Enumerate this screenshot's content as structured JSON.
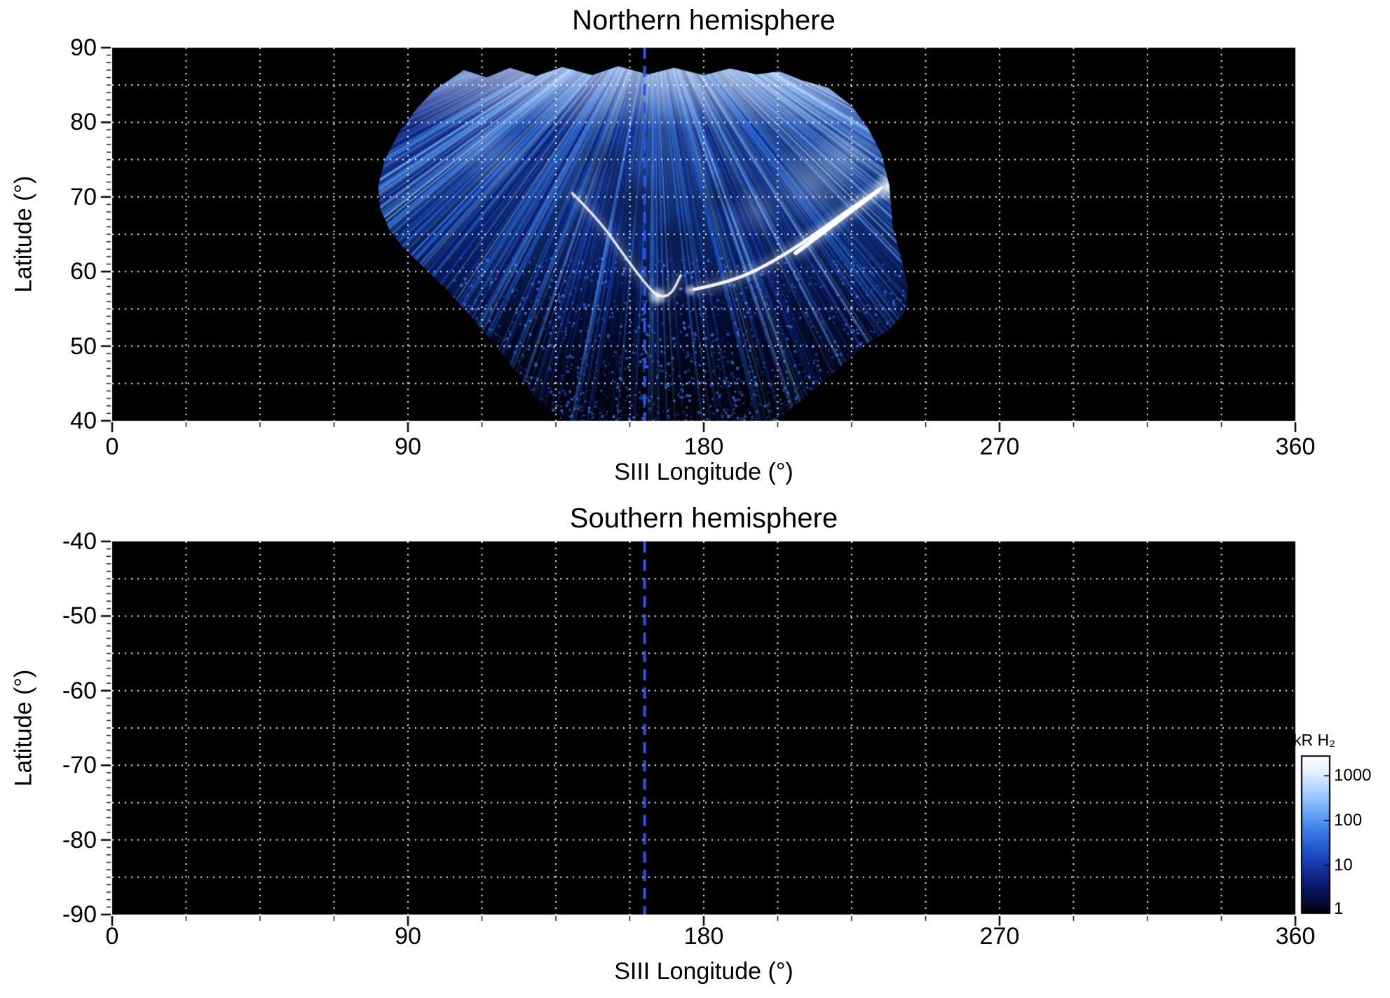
{
  "chart_data": [
    {
      "type": "heatmap",
      "title": "Northern hemisphere",
      "xlabel": "SIII Longitude (°)",
      "ylabel": "Latitude (°)",
      "xlim": [
        0,
        360
      ],
      "ylim": [
        40,
        90
      ],
      "xticks": [
        0,
        90,
        180,
        270,
        360
      ],
      "yticks": [
        40,
        50,
        60,
        70,
        80,
        90
      ],
      "grid_on": true,
      "grid_x_spacing": 22.5,
      "grid_y_spacing": 5,
      "grid_color": "#ffffff",
      "background": "#000000",
      "dashed_line_lon": 162,
      "dashed_line_color": "#2a55e8",
      "aurora": {
        "present": true,
        "description": "Fan-shaped observed swath of H2 auroral emission, radial streak texture, bright main emission arc near 55-72 deg latitude",
        "coverage_lon": [
          80,
          243
        ],
        "coverage_lat": [
          40,
          87.5
        ],
        "swath_polygon": [
          [
            102,
            85.5
          ],
          [
            107,
            87
          ],
          [
            114,
            86
          ],
          [
            121,
            87.3
          ],
          [
            129,
            86.2
          ],
          [
            137,
            87.4
          ],
          [
            146,
            86.3
          ],
          [
            154,
            87.5
          ],
          [
            163,
            86.4
          ],
          [
            171,
            87.3
          ],
          [
            180,
            86.3
          ],
          [
            188,
            87.2
          ],
          [
            196,
            86.4
          ],
          [
            203,
            86.8
          ],
          [
            210,
            85.6
          ],
          [
            218,
            84.6
          ],
          [
            225,
            82.2
          ],
          [
            230,
            79.2
          ],
          [
            234,
            75.8
          ],
          [
            236.5,
            71.5
          ],
          [
            237.5,
            66
          ],
          [
            240.5,
            61
          ],
          [
            242.3,
            57.5
          ],
          [
            241,
            54.5
          ],
          [
            236,
            52
          ],
          [
            230,
            50.5
          ],
          [
            222,
            47.5
          ],
          [
            213,
            44
          ],
          [
            206,
            41.5
          ],
          [
            202,
            40
          ],
          [
            137,
            40
          ],
          [
            129,
            43
          ],
          [
            123,
            46.5
          ],
          [
            117,
            50
          ],
          [
            110,
            53.5
          ],
          [
            102,
            57.5
          ],
          [
            95,
            60.5
          ],
          [
            89,
            63
          ],
          [
            84.5,
            65.5
          ],
          [
            81.5,
            68.5
          ],
          [
            81,
            71.5
          ],
          [
            83,
            75
          ],
          [
            87.5,
            78.8
          ],
          [
            93,
            82
          ],
          [
            98,
            84.3
          ]
        ],
        "streak_origin": [
          165,
          96
        ],
        "streak_top_range": [
          99,
          225
        ],
        "streak_count": 720,
        "speckle_count": 2600,
        "arcs": [
          {
            "points": [
              [
                140,
                70.5
              ],
              [
                148,
                67
              ],
              [
                156,
                62
              ],
              [
                162,
                58.5
              ],
              [
                166,
                56.6
              ],
              [
                170,
                56.8
              ],
              [
                173,
                59.5
              ]
            ],
            "width": 3.5,
            "alpha": 0.85
          },
          {
            "points": [
              [
                177,
                57.6
              ],
              [
                188,
                58.6
              ],
              [
                199,
                60.8
              ],
              [
                210,
                63.8
              ],
              [
                222,
                67.6
              ],
              [
                234,
                71.2
              ]
            ],
            "width": 4.5,
            "alpha": 0.95
          },
          {
            "points": [
              [
                208,
                62.5
              ],
              [
                220,
                66.5
              ],
              [
                233,
                70.8
              ]
            ],
            "width": 6,
            "alpha": 1
          }
        ],
        "bright_spots": [
          [
            166,
            56.7,
            15,
            0.9
          ],
          [
            236,
            71.4,
            22,
            0.95
          ],
          [
            176,
            57.5,
            10,
            0.7
          ]
        ],
        "bright_patches": [
          [
            213,
            72,
            60,
            0.3
          ],
          [
            223,
            75.5,
            45,
            0.28
          ],
          [
            196,
            68,
            40,
            0.2
          ],
          [
            115,
            76,
            55,
            0.18
          ]
        ],
        "dark_patches": [
          [
            158,
            69,
            50,
            0.4
          ],
          [
            171,
            64.5,
            35,
            0.35
          ],
          [
            150,
            75,
            40,
            0.3
          ],
          [
            185,
            70,
            38,
            0.3
          ]
        ]
      }
    },
    {
      "type": "heatmap",
      "title": "Southern hemisphere",
      "xlabel": "SIII Longitude (°)",
      "ylabel": "Latitude (°)",
      "xlim": [
        0,
        360
      ],
      "ylim": [
        -90,
        -40
      ],
      "xticks": [
        0,
        90,
        180,
        270,
        360
      ],
      "yticks": [
        -40,
        -50,
        -60,
        -70,
        -80,
        -90
      ],
      "grid_on": true,
      "grid_x_spacing": 22.5,
      "grid_y_spacing": 5,
      "grid_color": "#ffffff",
      "background": "#000000",
      "dashed_line_lon": 162,
      "dashed_line_color": "#2a55e8",
      "aurora": {
        "present": false
      }
    }
  ],
  "colorbar": {
    "title": "kR H₂",
    "scale": "log",
    "ticks": [
      "1000",
      "100",
      "10",
      "1"
    ],
    "gradient": [
      [
        "0",
        "#ffffff"
      ],
      [
        "0.1",
        "#e4f1ff"
      ],
      [
        "0.28",
        "#8fc2ff"
      ],
      [
        "0.46",
        "#3f82e8"
      ],
      [
        "0.64",
        "#1c46c0"
      ],
      [
        "0.82",
        "#0a1a70"
      ],
      [
        "0.95",
        "#03082e"
      ],
      [
        "1",
        "#000000"
      ]
    ]
  }
}
